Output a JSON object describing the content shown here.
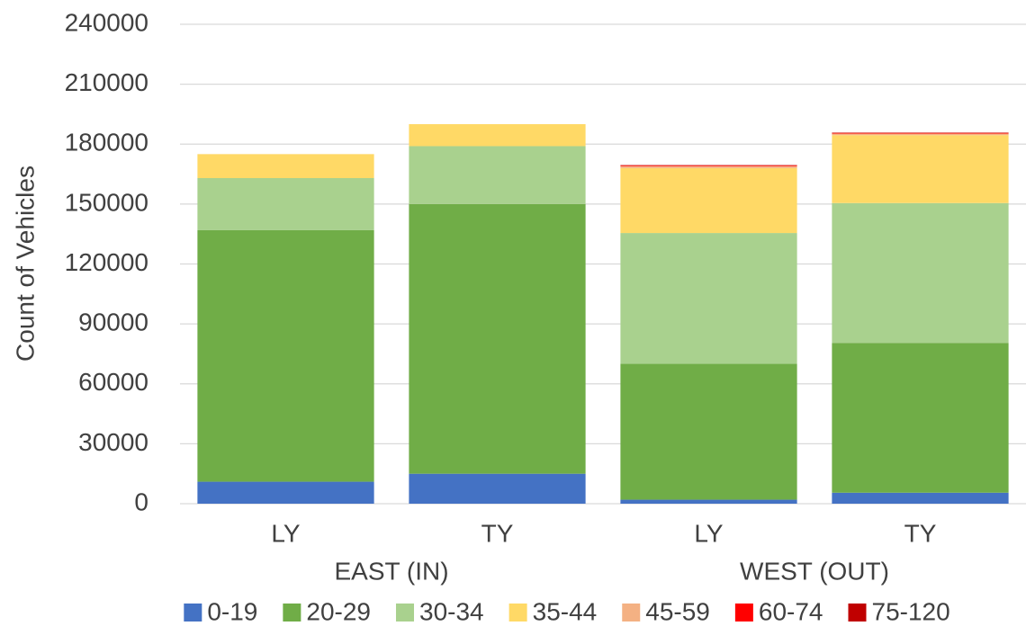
{
  "chart_data": {
    "type": "stacked_bar",
    "y_label": "Count of Vehicles",
    "categories": [
      "LY",
      "TY",
      "LY",
      "TY"
    ],
    "groups": [
      "EAST (IN)",
      "WEST (OUT)"
    ],
    "series": [
      {
        "name": "0-19",
        "color": "#4472c4",
        "values": [
          11000,
          15000,
          2000,
          5500
        ]
      },
      {
        "name": "20-29",
        "color": "#70ad47",
        "values": [
          126000,
          135000,
          68000,
          75000
        ]
      },
      {
        "name": "30-34",
        "color": "#a9d18e",
        "values": [
          26000,
          29000,
          65500,
          70000
        ]
      },
      {
        "name": "35-44",
        "color": "#ffd966",
        "values": [
          12000,
          11000,
          32500,
          34000
        ]
      },
      {
        "name": "45-59",
        "color": "#f4b183",
        "values": [
          0,
          0,
          1000,
          800
        ]
      },
      {
        "name": "60-74",
        "color": "#ff0000",
        "values": [
          0,
          0,
          300,
          300
        ]
      },
      {
        "name": "75-120",
        "color": "#c00000",
        "values": [
          0,
          0,
          200,
          200
        ]
      }
    ],
    "ylim": [
      0,
      240000
    ],
    "yticks": [
      0,
      30000,
      60000,
      90000,
      120000,
      150000,
      180000,
      210000,
      240000
    ],
    "grid": true,
    "legend": "bottom"
  }
}
